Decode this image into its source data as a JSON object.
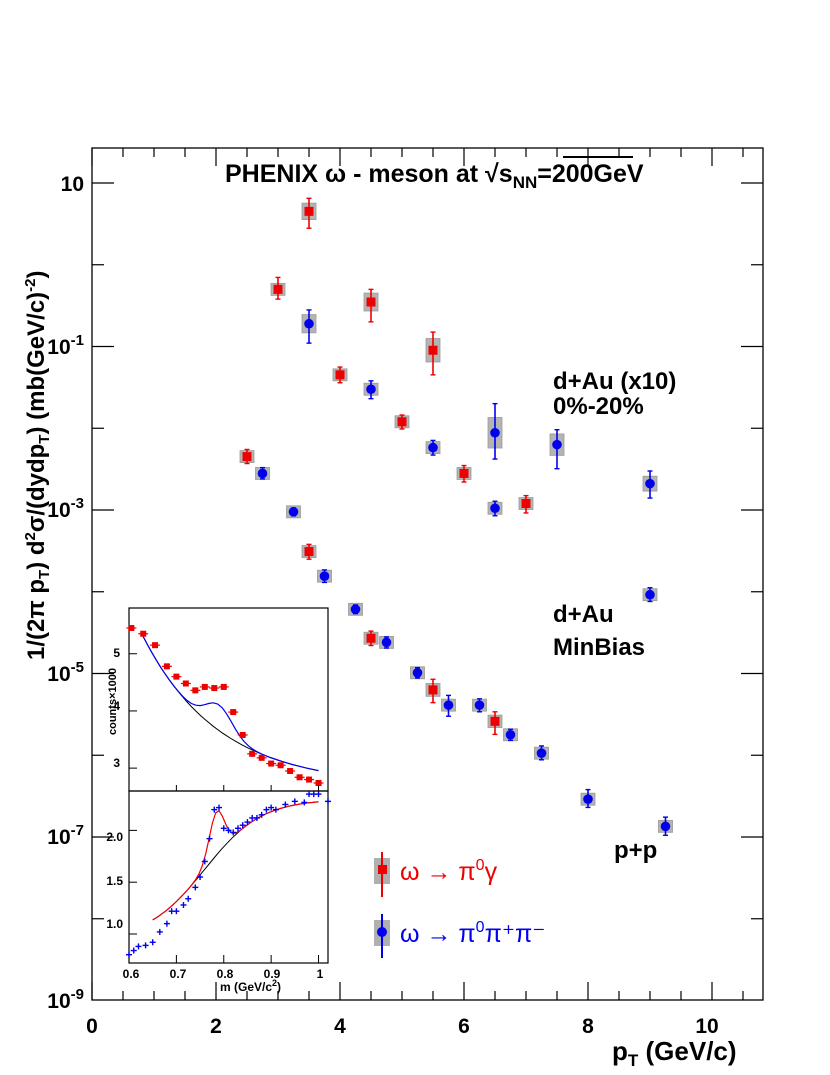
{
  "chart_data": [
    {
      "type": "scatter",
      "title": "PHENIX ω - meson at √s",
      "title_sub": "NN",
      "title_tail": "=200GeV",
      "xlabel": "p",
      "xlabel_sub": "T",
      "xlabel_unit": " (GeV/c)",
      "ylabel": "1/(2π p",
      "ylabel_sub": "T",
      "ylabel_mid": ") d",
      "ylabel_sup": "2",
      "ylabel_mid2": "σ/(dydp",
      "ylabel_sub2": "T",
      "ylabel_tail": ") (mb(GeV/c)",
      "ylabel_sup2": "-2",
      "ylabel_end": ")",
      "xlim": [
        0,
        10.8
      ],
      "ylim": [
        1e-09,
        50
      ],
      "log_y": true,
      "grid": false,
      "x_ticks": [
        "0",
        "2",
        "4",
        "6",
        "8",
        "10"
      ],
      "y_ticks": [
        {
          "base": "10",
          "exp": ""
        },
        {
          "base": "10",
          "exp": "-1"
        },
        {
          "base": "10",
          "exp": "-3"
        },
        {
          "base": "10",
          "exp": "-5"
        },
        {
          "base": "10",
          "exp": "-7"
        },
        {
          "base": "10",
          "exp": "-9"
        }
      ],
      "annotations": {
        "dau_central": "d+Au (x10)",
        "dau_central_2": "0%-20%",
        "dau_minbias": "d+Au",
        "dau_minbias_2": "MinBias",
        "pp": "p+p"
      },
      "legend": {
        "placement": "bottom-center",
        "entries": [
          {
            "label": "ω → π",
            "sup": "0",
            "tail": "γ",
            "color": "#ee0000",
            "marker": "square"
          },
          {
            "label": "ω → π",
            "sup": "0",
            "tail": "π⁺π⁻",
            "color": "#0000ee",
            "marker": "circle"
          }
        ]
      },
      "series": [
        {
          "channel": "pi0gamma",
          "group": "d+Au 0-20% x10",
          "color": "#ee0000",
          "marker": "square",
          "points": [
            {
              "x": 3.0,
              "y": 0.5,
              "lo": 0.38,
              "hi": 0.7
            },
            {
              "x": 3.5,
              "y": 4.5,
              "lo": 2.8,
              "hi": 6.5
            },
            {
              "x": 4.0,
              "y": 0.045,
              "lo": 0.036,
              "hi": 0.056
            },
            {
              "x": 4.5,
              "y": 0.35,
              "lo": 0.2,
              "hi": 0.5
            },
            {
              "x": 5.0,
              "y": 0.012,
              "lo": 0.0098,
              "hi": 0.0145
            },
            {
              "x": 5.5,
              "y": 0.09,
              "lo": 0.045,
              "hi": 0.15
            },
            {
              "x": 6.0,
              "y": 0.0028,
              "lo": 0.0022,
              "hi": 0.0035
            },
            {
              "x": 7.0,
              "y": 0.0012,
              "lo": 0.00092,
              "hi": 0.0015
            }
          ]
        },
        {
          "channel": "pi0pipi",
          "group": "d+Au 0-20% x10",
          "color": "#0000ee",
          "marker": "circle",
          "points": [
            {
              "x": 3.5,
              "y": 0.19,
              "lo": 0.11,
              "hi": 0.28
            },
            {
              "x": 4.5,
              "y": 0.03,
              "lo": 0.023,
              "hi": 0.038
            },
            {
              "x": 5.5,
              "y": 0.0058,
              "lo": 0.0047,
              "hi": 0.0071
            },
            {
              "x": 6.5,
              "y": 0.0088,
              "lo": 0.0042,
              "hi": 0.02
            },
            {
              "x": 6.5,
              "y": 0.00105,
              "lo": 0.00085,
              "hi": 0.00128
            },
            {
              "x": 7.5,
              "y": 0.0063,
              "lo": 0.0032,
              "hi": 0.0096
            },
            {
              "x": 9.0,
              "y": 0.0021,
              "lo": 0.0014,
              "hi": 0.003
            }
          ]
        },
        {
          "channel": "pi0gamma",
          "group": "d+Au MinBias",
          "color": "#ee0000",
          "marker": "square",
          "points": [
            {
              "x": 2.5,
              "y": 0.0045,
              "lo": 0.0037,
              "hi": 0.0055
            },
            {
              "x": 3.5,
              "y": 0.00031,
              "lo": 0.00025,
              "hi": 0.00038
            },
            {
              "x": 4.5,
              "y": 2.7e-05,
              "lo": 2.2e-05,
              "hi": 3.3e-05
            },
            {
              "x": 5.5,
              "y": 6.3e-06,
              "lo": 4.4e-06,
              "hi": 8.5e-06
            },
            {
              "x": 6.5,
              "y": 2.6e-06,
              "lo": 1.8e-06,
              "hi": 3.4e-06
            }
          ]
        },
        {
          "channel": "pi0pipi",
          "group": "d+Au MinBias",
          "color": "#0000ee",
          "marker": "circle",
          "points": [
            {
              "x": 2.75,
              "y": 0.0028,
              "lo": 0.0024,
              "hi": 0.0033
            },
            {
              "x": 3.25,
              "y": 0.00095,
              "lo": 0.00085,
              "hi": 0.00106
            },
            {
              "x": 3.75,
              "y": 0.000155,
              "lo": 0.00013,
              "hi": 0.000185
            },
            {
              "x": 4.25,
              "y": 6.1e-05,
              "lo": 5.4e-05,
              "hi": 6.9e-05
            },
            {
              "x": 4.75,
              "y": 2.4e-05,
              "lo": 2.05e-05,
              "hi": 2.8e-05
            },
            {
              "x": 5.25,
              "y": 1.02e-05,
              "lo": 8.8e-06,
              "hi": 1.18e-05
            },
            {
              "x": 6.25,
              "y": 4.1e-06,
              "lo": 3.4e-06,
              "hi": 4.9e-06
            },
            {
              "x": 6.75,
              "y": 1.78e-06,
              "lo": 1.52e-06,
              "hi": 2.08e-06
            },
            {
              "x": 7.25,
              "y": 1.06e-06,
              "lo": 8.8e-07,
              "hi": 1.3e-06
            },
            {
              "x": 9.0,
              "y": 9.2e-05,
              "lo": 7.6e-05,
              "hi": 0.000112
            }
          ]
        },
        {
          "channel": "pi0pipi",
          "group": "p+p",
          "color": "#0000ee",
          "marker": "circle",
          "points": [
            {
              "x": 5.75,
              "y": 4.1e-06,
              "lo": 3e-06,
              "hi": 5.4e-06
            },
            {
              "x": 8.0,
              "y": 2.9e-07,
              "lo": 2.3e-07,
              "hi": 3.8e-07
            },
            {
              "x": 9.25,
              "y": 1.35e-07,
              "lo": 1.05e-07,
              "hi": 1.75e-07
            }
          ]
        }
      ]
    },
    {
      "type": "scatter",
      "panel": "inset-top",
      "ylabel": "counts×1000",
      "y_ticks": [
        "3",
        "4",
        "5"
      ],
      "ylim": [
        2.6,
        5.8
      ],
      "xlim": [
        0.6,
        1.02
      ],
      "points_x": [
        0.605,
        0.63,
        0.655,
        0.68,
        0.7,
        0.72,
        0.74,
        0.76,
        0.78,
        0.8,
        0.82,
        0.84,
        0.86,
        0.88,
        0.9,
        0.92,
        0.94,
        0.96,
        0.98,
        1.0
      ],
      "points_y": [
        5.45,
        5.35,
        5.15,
        4.78,
        4.6,
        4.48,
        4.36,
        4.42,
        4.4,
        4.42,
        3.98,
        3.58,
        3.25,
        3.18,
        3.08,
        3.05,
        2.95,
        2.84,
        2.8,
        2.74
      ],
      "fit_total_color": "#0000ee",
      "fit_background_color": "#000000"
    },
    {
      "type": "scatter",
      "panel": "inset-bottom",
      "xlabel": "m",
      "xlabel_unit": "(GeV/c",
      "xlabel_sup": "2",
      "xlabel_end": ")",
      "x_ticks": [
        "0.6",
        "0.7",
        "0.8",
        "0.9",
        "1"
      ],
      "y_ticks": [
        "1.0",
        "1.5",
        "2.0"
      ],
      "xlim": [
        0.6,
        1.02
      ],
      "ylim": [
        0.72,
        2.38
      ],
      "points_x": [
        0.6,
        0.61,
        0.62,
        0.635,
        0.65,
        0.665,
        0.68,
        0.69,
        0.7,
        0.715,
        0.725,
        0.74,
        0.75,
        0.76,
        0.77,
        0.78,
        0.79,
        0.8,
        0.81,
        0.82,
        0.83,
        0.84,
        0.85,
        0.86,
        0.87,
        0.88,
        0.89,
        0.9,
        0.91,
        0.93,
        0.95,
        0.97,
        0.98,
        0.99,
        1.0,
        1.02
      ],
      "points_y": [
        0.8,
        0.84,
        0.88,
        0.89,
        0.92,
        1.02,
        1.1,
        1.22,
        1.22,
        1.28,
        1.34,
        1.45,
        1.55,
        1.7,
        1.92,
        2.2,
        2.22,
        2.02,
        2.0,
        1.98,
        2.02,
        2.05,
        2.08,
        2.12,
        2.12,
        2.15,
        2.2,
        2.22,
        2.2,
        2.25,
        2.28,
        2.27,
        2.35,
        2.35,
        2.35,
        2.28
      ],
      "fit_total_color": "#ee0000",
      "fit_background_color": "#000000"
    }
  ]
}
